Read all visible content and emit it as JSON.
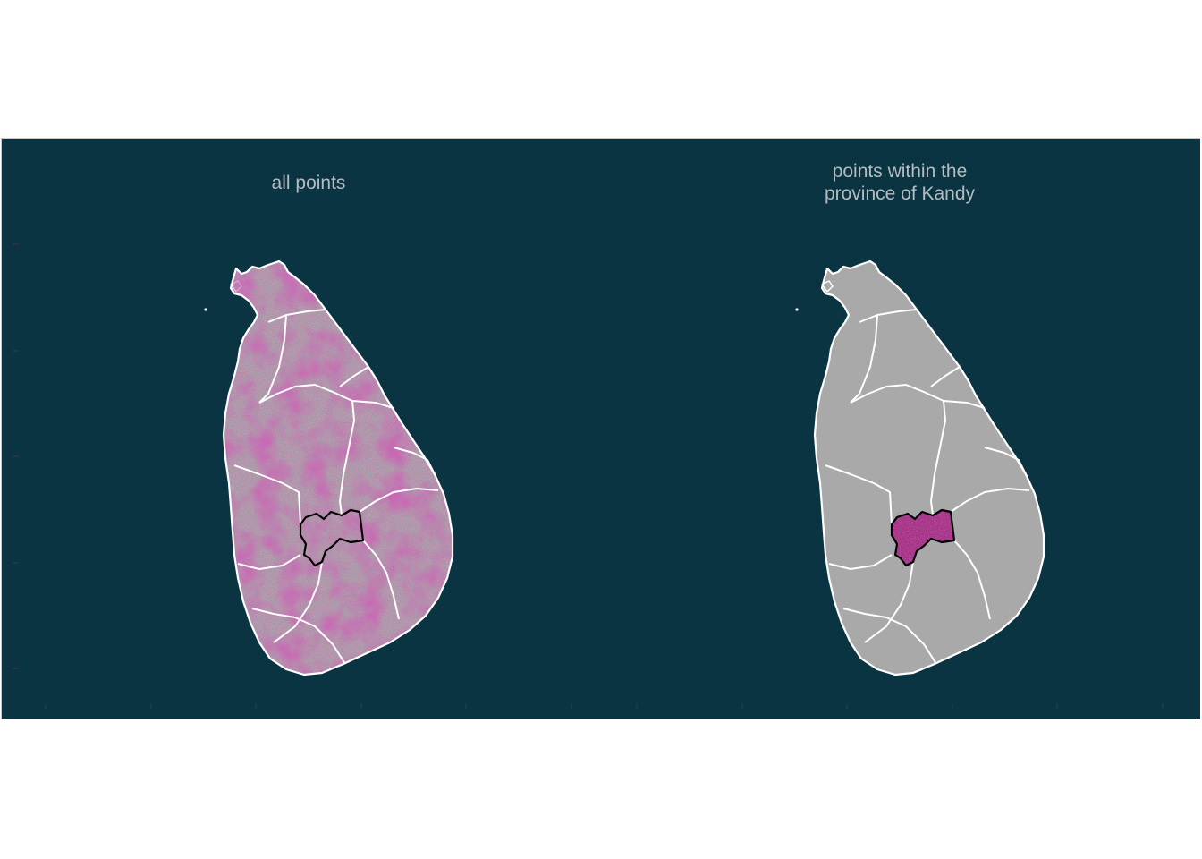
{
  "panels": [
    {
      "id": "left",
      "title_lines": [
        "all points"
      ],
      "mode": "all"
    },
    {
      "id": "right",
      "title_lines": [
        "points within the",
        "province of Kandy"
      ],
      "mode": "kandy"
    }
  ],
  "colors": {
    "background": "#0a3442",
    "land": "#a9a9a9",
    "points": "#9b1f79",
    "boundaries": "#ffffff",
    "highlight_boundary": "#000000",
    "ticks": "#3a3a3a"
  }
}
